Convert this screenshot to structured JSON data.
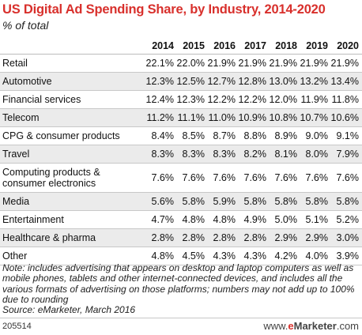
{
  "chart_data": {
    "type": "table",
    "title": "US Digital Ad Spending Share, by Industry, 2014-2020",
    "subtitle": "% of total",
    "columns": [
      "2014",
      "2015",
      "2016",
      "2017",
      "2018",
      "2019",
      "2020"
    ],
    "rows": [
      {
        "label": "Retail",
        "values": [
          "22.1%",
          "22.0%",
          "21.9%",
          "21.9%",
          "21.9%",
          "21.9%",
          "21.9%"
        ]
      },
      {
        "label": "Automotive",
        "values": [
          "12.3%",
          "12.5%",
          "12.7%",
          "12.8%",
          "13.0%",
          "13.2%",
          "13.4%"
        ]
      },
      {
        "label": "Financial services",
        "values": [
          "12.4%",
          "12.3%",
          "12.2%",
          "12.2%",
          "12.0%",
          "11.9%",
          "11.8%"
        ]
      },
      {
        "label": "Telecom",
        "values": [
          "11.2%",
          "11.1%",
          "11.0%",
          "10.9%",
          "10.8%",
          "10.7%",
          "10.6%"
        ]
      },
      {
        "label": "CPG & consumer products",
        "values": [
          "8.4%",
          "8.5%",
          "8.7%",
          "8.8%",
          "8.9%",
          "9.0%",
          "9.1%"
        ]
      },
      {
        "label": "Travel",
        "values": [
          "8.3%",
          "8.3%",
          "8.3%",
          "8.2%",
          "8.1%",
          "8.0%",
          "7.9%"
        ]
      },
      {
        "label": "Computing products & consumer electronics",
        "values": [
          "7.6%",
          "7.6%",
          "7.6%",
          "7.6%",
          "7.6%",
          "7.6%",
          "7.6%"
        ]
      },
      {
        "label": "Media",
        "values": [
          "5.6%",
          "5.8%",
          "5.9%",
          "5.8%",
          "5.8%",
          "5.8%",
          "5.8%"
        ]
      },
      {
        "label": "Entertainment",
        "values": [
          "4.7%",
          "4.8%",
          "4.8%",
          "4.9%",
          "5.0%",
          "5.1%",
          "5.2%"
        ]
      },
      {
        "label": "Healthcare & pharma",
        "values": [
          "2.8%",
          "2.8%",
          "2.8%",
          "2.8%",
          "2.9%",
          "2.9%",
          "3.0%"
        ]
      },
      {
        "label": "Other",
        "values": [
          "4.8%",
          "4.5%",
          "4.3%",
          "4.3%",
          "4.2%",
          "4.0%",
          "3.9%"
        ]
      }
    ]
  },
  "note": "Note: includes advertising that appears on desktop and laptop computers as well as mobile phones, tablets and other internet-connected devices, and includes all the various formats of advertising on those platforms; numbers may not add up to 100% due to rounding",
  "source": "Source: eMarketer, March 2016",
  "chart_id": "205514",
  "brand": {
    "prefix": "www.",
    "e": "e",
    "name": "Marketer",
    "suffix": ".com"
  },
  "colors": {
    "title": "#d8302c",
    "alt_row": "#ebebeb",
    "rule": "#c8c8c8"
  }
}
